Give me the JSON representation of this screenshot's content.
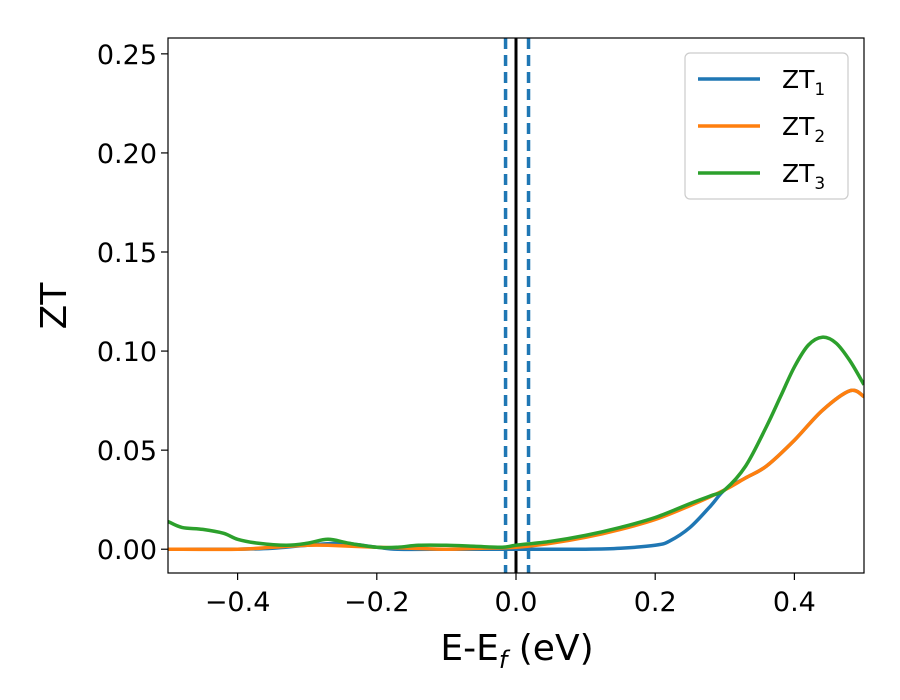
{
  "chart_data": {
    "type": "line",
    "xlabel": "E-E",
    "xlabel_sub": "f",
    "xlabel_unit": " (eV)",
    "ylabel": "ZT",
    "xlim": [
      -0.5,
      0.5
    ],
    "ylim": [
      -0.012,
      0.258
    ],
    "xticks": [
      -0.4,
      -0.2,
      0.0,
      0.2,
      0.4
    ],
    "xtick_labels": [
      "−0.4",
      "−0.2",
      "0.0",
      "0.2",
      "0.4"
    ],
    "yticks": [
      0.0,
      0.05,
      0.1,
      0.15,
      0.2,
      0.25
    ],
    "ytick_labels": [
      "0.00",
      "0.05",
      "0.10",
      "0.15",
      "0.20",
      "0.25"
    ],
    "grid": false,
    "legend_position": "top-right",
    "vlines": [
      {
        "x": 0.0,
        "style": "solid",
        "color": "#000000"
      },
      {
        "x": -0.015,
        "style": "dashed",
        "color": "#1f77b4"
      },
      {
        "x": 0.018,
        "style": "dashed",
        "color": "#1f77b4"
      }
    ],
    "series": [
      {
        "name": "ZT",
        "sub": "1",
        "color": "#1f77b4",
        "x": [
          -0.5,
          -0.4,
          -0.35,
          -0.3,
          -0.25,
          -0.2,
          -0.17,
          -0.1,
          -0.05,
          0.0,
          0.05,
          0.1,
          0.15,
          0.2,
          0.22,
          0.25,
          0.28,
          0.3,
          0.33,
          0.36,
          0.4,
          0.44,
          0.48,
          0.5
        ],
        "y": [
          0.0,
          0.0,
          0.0005,
          0.002,
          0.003,
          0.001,
          0.0,
          0.0,
          0.0,
          0.0,
          0.0,
          0.0,
          0.0005,
          0.002,
          0.004,
          0.011,
          0.022,
          0.03,
          0.036,
          0.042,
          0.055,
          0.07,
          0.08,
          0.077
        ]
      },
      {
        "name": "ZT",
        "sub": "2",
        "color": "#ff7f0e",
        "x": [
          -0.5,
          -0.4,
          -0.35,
          -0.3,
          -0.27,
          -0.2,
          -0.15,
          -0.1,
          -0.05,
          0.0,
          0.05,
          0.1,
          0.15,
          0.2,
          0.25,
          0.3,
          0.33,
          0.36,
          0.4,
          0.44,
          0.48,
          0.5
        ],
        "y": [
          0.0,
          0.0,
          0.001,
          0.002,
          0.002,
          0.001,
          0.0005,
          0.0,
          0.0005,
          0.001,
          0.003,
          0.006,
          0.01,
          0.015,
          0.022,
          0.03,
          0.036,
          0.042,
          0.055,
          0.07,
          0.08,
          0.077
        ]
      },
      {
        "name": "ZT",
        "sub": "3",
        "color": "#2ca02c",
        "x": [
          -0.5,
          -0.48,
          -0.45,
          -0.42,
          -0.4,
          -0.37,
          -0.33,
          -0.3,
          -0.27,
          -0.24,
          -0.2,
          -0.17,
          -0.14,
          -0.1,
          -0.06,
          -0.02,
          0.0,
          0.05,
          0.1,
          0.15,
          0.2,
          0.25,
          0.28,
          0.3,
          0.33,
          0.36,
          0.38,
          0.4,
          0.42,
          0.44,
          0.46,
          0.48,
          0.5
        ],
        "y": [
          0.014,
          0.011,
          0.01,
          0.008,
          0.005,
          0.003,
          0.002,
          0.003,
          0.005,
          0.003,
          0.001,
          0.001,
          0.002,
          0.002,
          0.0015,
          0.001,
          0.002,
          0.004,
          0.007,
          0.011,
          0.016,
          0.023,
          0.027,
          0.03,
          0.042,
          0.062,
          0.077,
          0.092,
          0.103,
          0.107,
          0.104,
          0.095,
          0.083
        ]
      }
    ]
  }
}
